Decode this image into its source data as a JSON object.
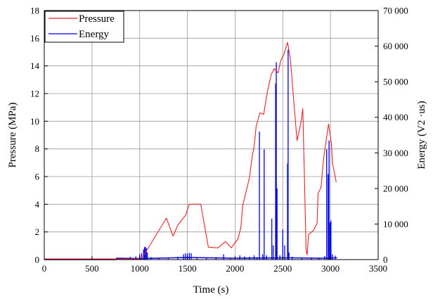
{
  "chart_data": {
    "type": "line",
    "xlabel": "Time (s)",
    "ylabel": "Pressure (MPa)",
    "y2label": "Energy (V2 ·us)",
    "xlim": [
      0,
      3500
    ],
    "ylim": [
      0,
      18
    ],
    "y2lim": [
      0,
      70000
    ],
    "x_ticks": [
      "0",
      "500",
      "1000",
      "1500",
      "2000",
      "2500",
      "3000",
      "3500"
    ],
    "y_ticks": [
      "0",
      "2",
      "4",
      "6",
      "8",
      "10",
      "12",
      "14",
      "16",
      "18"
    ],
    "y2_ticks": [
      "0",
      "10 000",
      "20 000",
      "30 000",
      "40 000",
      "50 000",
      "60 000",
      "70 000"
    ],
    "grid": true,
    "legend": "top-left",
    "colors": {
      "pressure": "#e8202a",
      "energy": "#0000e6"
    },
    "series": [
      {
        "name": "Pressure",
        "axis": "left",
        "points": [
          [
            0,
            0.05
          ],
          [
            1000,
            0.05
          ],
          [
            1050,
            0.4
          ],
          [
            1280,
            3.0
          ],
          [
            1350,
            1.7
          ],
          [
            1400,
            2.5
          ],
          [
            1480,
            3.2
          ],
          [
            1520,
            4.0
          ],
          [
            1640,
            4.0
          ],
          [
            1720,
            0.9
          ],
          [
            1820,
            0.85
          ],
          [
            1900,
            1.3
          ],
          [
            1960,
            0.85
          ],
          [
            2030,
            1.5
          ],
          [
            2060,
            2.3
          ],
          [
            2080,
            3.9
          ],
          [
            2150,
            5.9
          ],
          [
            2180,
            7.5
          ],
          [
            2200,
            8.2
          ],
          [
            2220,
            9.6
          ],
          [
            2260,
            10.6
          ],
          [
            2300,
            10.5
          ],
          [
            2340,
            12.2
          ],
          [
            2380,
            13.4
          ],
          [
            2410,
            13.8
          ],
          [
            2450,
            13.5
          ],
          [
            2480,
            14.4
          ],
          [
            2510,
            14.8
          ],
          [
            2550,
            15.7
          ],
          [
            2580,
            14.5
          ],
          [
            2620,
            11.0
          ],
          [
            2650,
            8.6
          ],
          [
            2690,
            9.9
          ],
          [
            2710,
            10.9
          ],
          [
            2730,
            5.0
          ],
          [
            2745,
            0.6
          ],
          [
            2755,
            0.35
          ],
          [
            2770,
            1.8
          ],
          [
            2820,
            2.1
          ],
          [
            2860,
            2.6
          ],
          [
            2870,
            4.8
          ],
          [
            2900,
            5.2
          ],
          [
            2930,
            7.4
          ],
          [
            2950,
            8.4
          ],
          [
            2980,
            9.8
          ],
          [
            3010,
            8.4
          ],
          [
            3020,
            7.0
          ],
          [
            3060,
            5.6
          ]
        ]
      },
      {
        "name": "Energy",
        "axis": "right",
        "baseline": [
          [
            0,
            0
          ],
          [
            750,
            0
          ],
          [
            760,
            400
          ],
          [
            1000,
            300
          ],
          [
            1500,
            600
          ],
          [
            2000,
            400
          ],
          [
            2600,
            500
          ],
          [
            2900,
            400
          ],
          [
            3070,
            500
          ]
        ],
        "spikes": [
          [
            760,
            600
          ],
          [
            800,
            400
          ],
          [
            900,
            800
          ],
          [
            960,
            900
          ],
          [
            1000,
            1500
          ],
          [
            1020,
            1800
          ],
          [
            1040,
            2800
          ],
          [
            1050,
            3500
          ],
          [
            1060,
            3600
          ],
          [
            1070,
            3200
          ],
          [
            1080,
            2000
          ],
          [
            1120,
            700
          ],
          [
            1200,
            500
          ],
          [
            1300,
            600
          ],
          [
            1400,
            800
          ],
          [
            1460,
            1500
          ],
          [
            1480,
            1800
          ],
          [
            1500,
            1700
          ],
          [
            1520,
            1900
          ],
          [
            1540,
            1800
          ],
          [
            1600,
            600
          ],
          [
            1700,
            500
          ],
          [
            1800,
            700
          ],
          [
            1880,
            1500
          ],
          [
            1950,
            600
          ],
          [
            2050,
            1200
          ],
          [
            2100,
            900
          ],
          [
            2150,
            800
          ],
          [
            2200,
            1200
          ],
          [
            2230,
            700
          ],
          [
            2255,
            36000
          ],
          [
            2290,
            1500
          ],
          [
            2305,
            31000
          ],
          [
            2330,
            1200
          ],
          [
            2385,
            11500
          ],
          [
            2400,
            4000
          ],
          [
            2425,
            49500
          ],
          [
            2432,
            55500
          ],
          [
            2440,
            20000
          ],
          [
            2470,
            1200
          ],
          [
            2500,
            8500
          ],
          [
            2520,
            4000
          ],
          [
            2550,
            27000
          ],
          [
            2556,
            59000
          ],
          [
            2565,
            2000
          ],
          [
            2600,
            800
          ],
          [
            2700,
            500
          ],
          [
            2800,
            600
          ],
          [
            2880,
            500
          ],
          [
            2940,
            1000
          ],
          [
            2960,
            31000
          ],
          [
            2975,
            24000
          ],
          [
            2985,
            33500
          ],
          [
            2995,
            10500
          ],
          [
            3005,
            11000
          ],
          [
            3020,
            1500
          ],
          [
            3050,
            1100
          ]
        ]
      }
    ]
  }
}
